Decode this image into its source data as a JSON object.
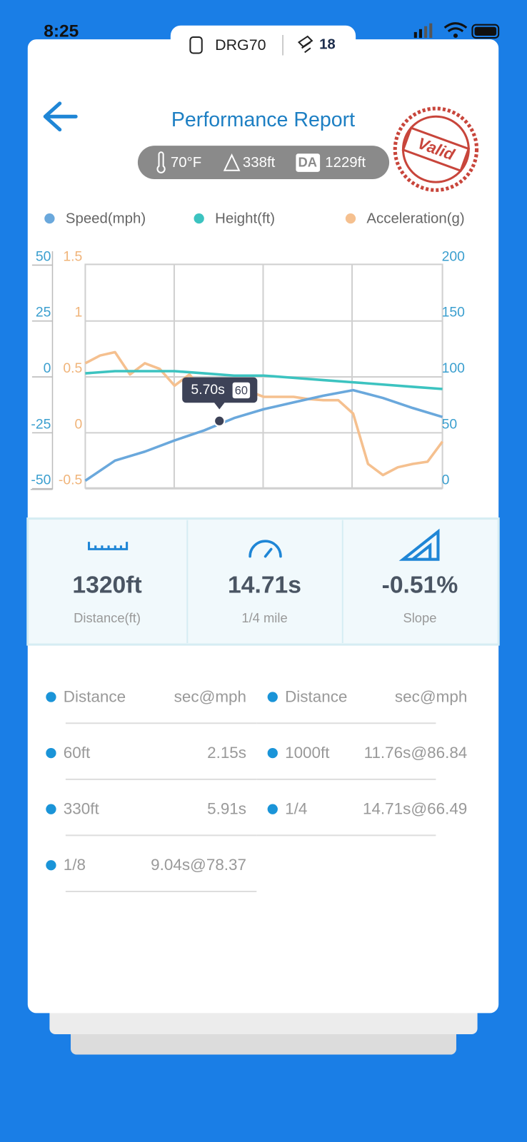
{
  "status": {
    "time": "8:25"
  },
  "device": {
    "name": "DRG70",
    "count": "18"
  },
  "header": {
    "title": "Performance Report",
    "stamp": "Valid"
  },
  "conditions": {
    "temperature": "70°F",
    "altitude": "338ft",
    "da_label": "DA",
    "density_altitude": "1229ft"
  },
  "chart_data": {
    "type": "line",
    "series": [
      {
        "name": "Speed(mph)",
        "color": "#6aa8dc",
        "axis": "y2",
        "values": [
          0,
          18,
          26,
          36,
          45,
          56,
          64,
          70,
          76,
          81,
          74,
          65,
          57
        ]
      },
      {
        "name": "Height(ft)",
        "color": "#3cc3c0",
        "values": [
          -2,
          -1,
          -1,
          -1,
          -2,
          -3,
          -3,
          -4,
          -5,
          -6,
          -7,
          -8,
          -9
        ]
      },
      {
        "name": "Acceleration(g)",
        "color": "#f5c08f",
        "axis": "y3",
        "values": [
          0.55,
          0.62,
          0.65,
          0.45,
          0.55,
          0.5,
          0.35,
          0.45,
          0.3,
          0.25,
          0.3,
          0.3,
          0.25,
          0.25,
          0.25,
          0.23,
          0.22,
          0.22,
          0.1,
          -0.35,
          -0.45,
          -0.38,
          -0.35,
          -0.33,
          -0.15
        ]
      }
    ],
    "ylim": [
      -50,
      50
    ],
    "yticks": [
      -50,
      -25,
      0,
      25,
      50
    ],
    "y2lim": [
      0,
      200
    ],
    "y2ticks": [
      0,
      50,
      100,
      150,
      200
    ],
    "y3lim": [
      -0.5,
      1.5
    ],
    "y3ticks": [
      -0.5,
      0,
      0.5,
      1,
      1.5
    ],
    "tooltip": {
      "time": "5.70s",
      "speed": "60"
    },
    "grid": true
  },
  "stats": [
    {
      "value": "1320ft",
      "label": "Distance(ft)"
    },
    {
      "value": "14.71s",
      "label": "1/4 mile"
    },
    {
      "value": "-0.51%",
      "label": "Slope"
    }
  ],
  "splits": {
    "headers": [
      "Distance",
      "sec@mph"
    ],
    "left": [
      [
        "60ft",
        "2.15s"
      ],
      [
        "330ft",
        "5.91s"
      ],
      [
        "1/8",
        "9.04s@78.37"
      ]
    ],
    "right": [
      [
        "1000ft",
        "11.76s@86.84"
      ],
      [
        "1/4",
        "14.71s@66.49"
      ]
    ]
  }
}
